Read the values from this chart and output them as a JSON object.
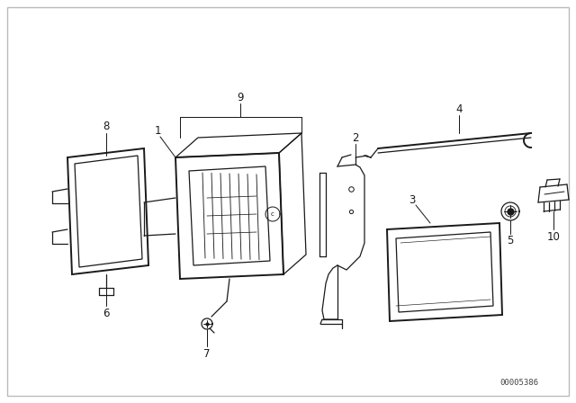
{
  "bg_color": "#ffffff",
  "line_color": "#1a1a1a",
  "part_number_text": "00005386",
  "label_fs": 8.5,
  "border_color": "#bbbbbb"
}
